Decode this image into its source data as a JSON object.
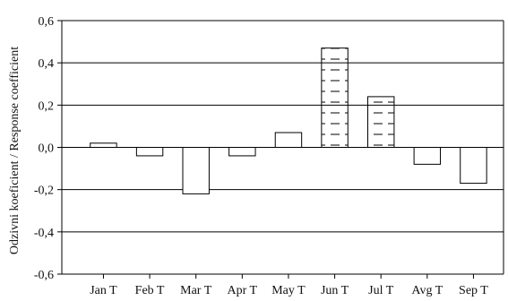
{
  "chart_data": {
    "type": "bar",
    "title": "",
    "xlabel": "",
    "ylabel": "Odzivni koeficient / Response coefficient",
    "categories": [
      "Jan T",
      "Feb T",
      "Mar T",
      "Apr T",
      "May T",
      "Jun T",
      "Jul T",
      "Avg T",
      "Sep T"
    ],
    "values": [
      0.02,
      -0.04,
      -0.22,
      -0.04,
      0.07,
      0.47,
      0.24,
      -0.08,
      -0.17
    ],
    "significant": [
      false,
      false,
      false,
      false,
      false,
      true,
      true,
      false,
      false
    ],
    "ylim": [
      -0.6,
      0.6
    ],
    "yticks": [
      -0.6,
      -0.4,
      -0.2,
      0.0,
      0.2,
      0.4,
      0.6
    ],
    "ytick_labels": [
      "-0,6",
      "-0,4",
      "-0,2",
      "0,0",
      "0,2",
      "0,4",
      "0,6"
    ],
    "grid": "horizontal",
    "legend": "none",
    "colors": {
      "bar_fill": "#ffffff",
      "bar_stroke": "#000000",
      "hatch": "#000000",
      "grid": "#000000"
    }
  }
}
